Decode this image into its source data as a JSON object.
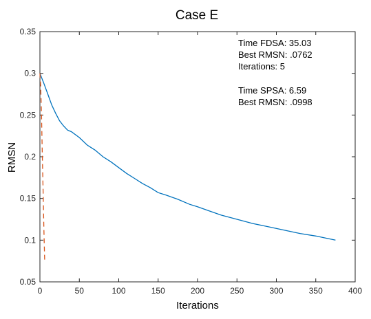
{
  "chart_data": {
    "type": "line",
    "title": "Case E",
    "xlabel": "Iterations",
    "ylabel": "RMSN",
    "xlim": [
      0,
      400
    ],
    "ylim": [
      0.05,
      0.35
    ],
    "xticks": [
      0,
      50,
      100,
      150,
      200,
      250,
      300,
      350,
      400
    ],
    "yticks": [
      0.05,
      0.1,
      0.15,
      0.2,
      0.25,
      0.3,
      0.35
    ],
    "xtick_labels": [
      "0",
      "50",
      "100",
      "150",
      "200",
      "250",
      "300",
      "350",
      "400"
    ],
    "ytick_labels": [
      "0.05",
      "0.1",
      "0.15",
      "0.2",
      "0.25",
      "0.3",
      "0.35"
    ],
    "grid": false,
    "legend": "none",
    "series": [
      {
        "color": "#0072BD",
        "style": "solid",
        "x": [
          0,
          5,
          10,
          15,
          20,
          25,
          30,
          35,
          40,
          50,
          60,
          70,
          80,
          90,
          100,
          110,
          120,
          130,
          140,
          150,
          160,
          175,
          190,
          200,
          215,
          230,
          250,
          270,
          290,
          310,
          330,
          350,
          365,
          375
        ],
        "y": [
          0.3,
          0.288,
          0.275,
          0.262,
          0.252,
          0.243,
          0.237,
          0.232,
          0.23,
          0.223,
          0.214,
          0.208,
          0.2,
          0.194,
          0.187,
          0.18,
          0.174,
          0.168,
          0.163,
          0.157,
          0.154,
          0.149,
          0.143,
          0.14,
          0.135,
          0.13,
          0.125,
          0.12,
          0.116,
          0.112,
          0.108,
          0.105,
          0.102,
          0.1
        ]
      },
      {
        "color": "#D95319",
        "style": "dashed",
        "x": [
          0,
          1,
          2,
          3,
          4,
          5,
          6
        ],
        "y": [
          0.3,
          0.285,
          0.25,
          0.205,
          0.16,
          0.115,
          0.076
        ]
      }
    ],
    "annotations": [
      "Time FDSA: 35.03",
      "Best RMSN: .0762",
      "Iterations: 5",
      "Time SPSA: 6.59",
      "Best RMSN: .0998"
    ]
  }
}
